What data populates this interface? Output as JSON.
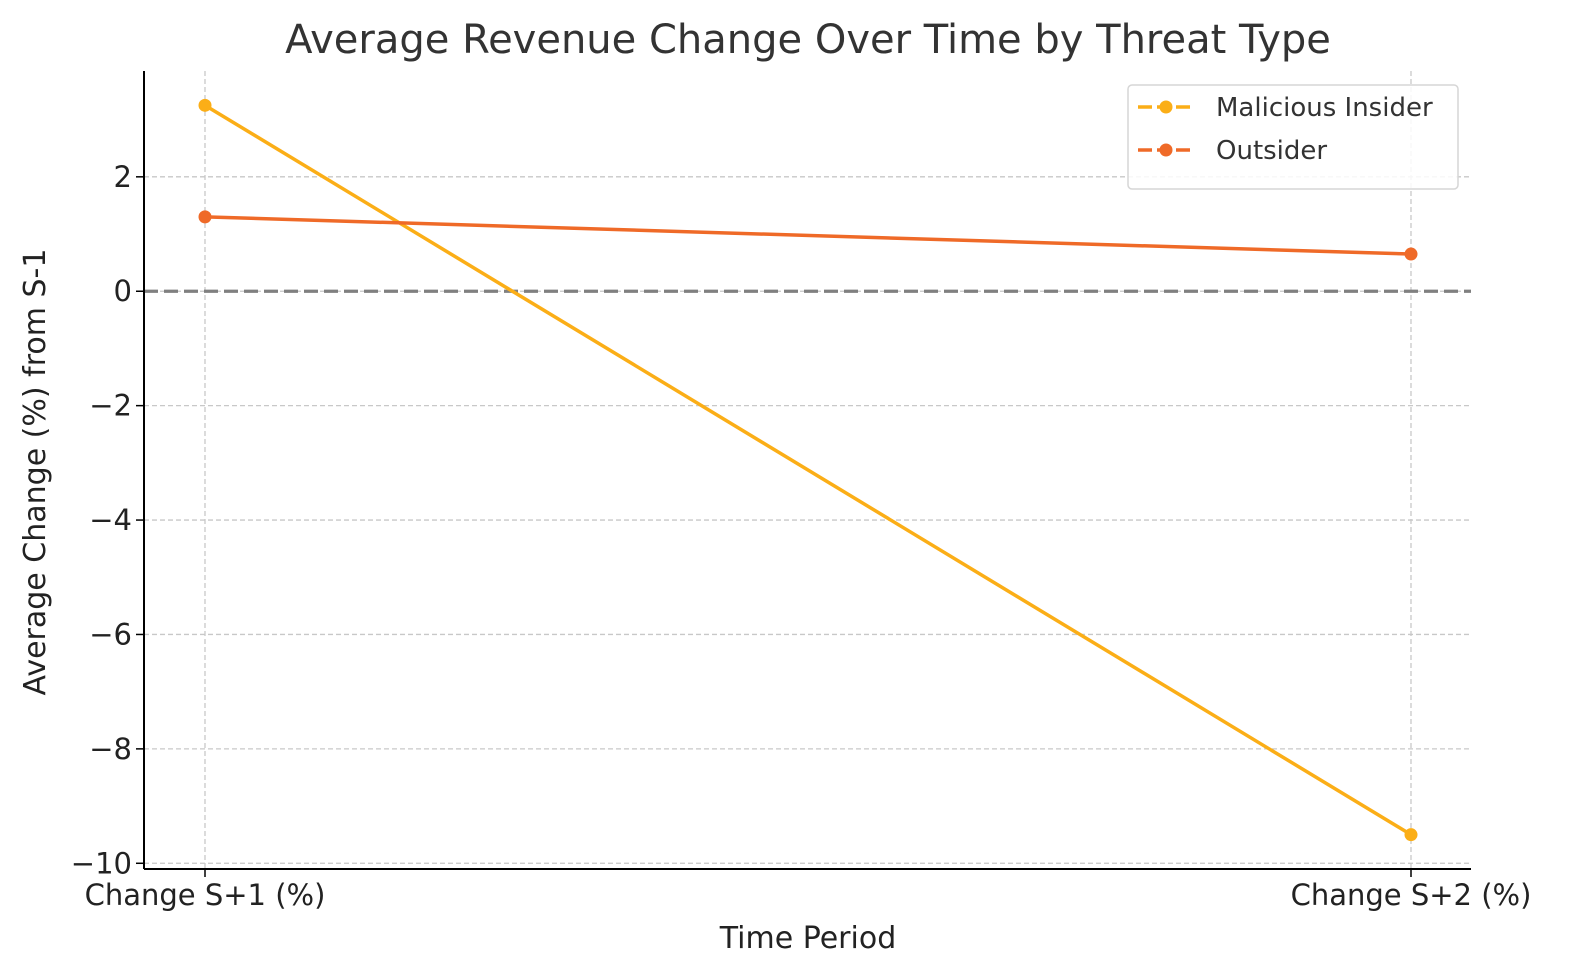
{
  "chart_data": {
    "type": "line",
    "title": "Average Revenue Change Over Time by Threat Type",
    "xlabel": "Time Period",
    "ylabel": "Average Change (%) from S-1",
    "categories": [
      "Change S+1 (%)",
      "Change S+2 (%)"
    ],
    "series": [
      {
        "name": "Malicious Insider",
        "values": [
          3.25,
          -9.5
        ],
        "color": "#FBAE17"
      },
      {
        "name": "Outsider",
        "values": [
          1.3,
          0.65
        ],
        "color": "#EF6A28"
      }
    ],
    "ylim": [
      -10.1,
      3.85
    ],
    "yticks": [
      -10,
      -8,
      -6,
      -4,
      -2,
      0,
      2
    ],
    "ytick_labels": [
      "−10",
      "−8",
      "−6",
      "−4",
      "−2",
      "0",
      "2"
    ],
    "grid": true,
    "reference_line": {
      "y": 0,
      "style": "dashed",
      "color": "#808080"
    },
    "legend_position": "top-right"
  }
}
